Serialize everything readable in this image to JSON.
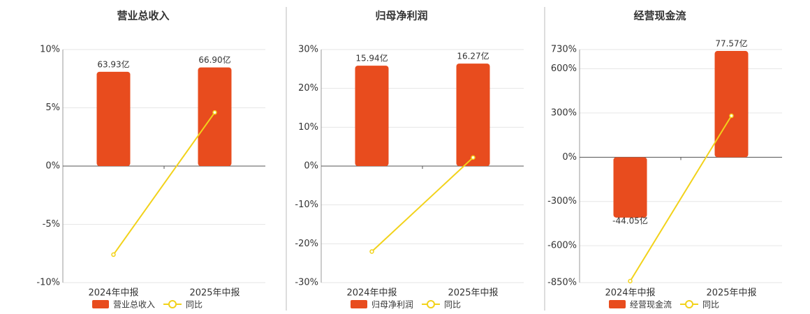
{
  "chart_data": [
    {
      "type": "bar",
      "title": "营业总收入",
      "categories": [
        "2024年中报",
        "2025年中报"
      ],
      "series": [
        {
          "name": "营业总收入",
          "type": "bar",
          "axis": "y2",
          "color": "#e84c1e",
          "values": [
            63.93,
            66.9
          ],
          "value_labels": [
            "63.93亿",
            "66.90亿"
          ]
        },
        {
          "name": "同比",
          "type": "line",
          "color": "#f2d21a",
          "values": [
            -7.6,
            4.6
          ]
        }
      ],
      "ylim": [
        -10,
        10
      ],
      "yticks": [
        {
          "value": 10,
          "label": "10%"
        },
        {
          "value": 5,
          "label": "5%"
        },
        {
          "value": 0,
          "label": "0%"
        },
        {
          "value": -5,
          "label": "-5%"
        },
        {
          "value": -10,
          "label": "-10%"
        }
      ],
      "y2lim": [
        -79,
        79
      ],
      "grid": true
    },
    {
      "type": "bar",
      "title": "归母净利润",
      "categories": [
        "2024年中报",
        "2025年中报"
      ],
      "series": [
        {
          "name": "归母净利润",
          "type": "bar",
          "axis": "y2",
          "color": "#e84c1e",
          "values": [
            15.94,
            16.27
          ],
          "value_labels": [
            "15.94亿",
            "16.27亿"
          ]
        },
        {
          "name": "同比",
          "type": "line",
          "color": "#f2d21a",
          "values": [
            -22.0,
            2.2
          ]
        }
      ],
      "ylim": [
        -30,
        30
      ],
      "yticks": [
        {
          "value": 30,
          "label": "30%"
        },
        {
          "value": 20,
          "label": "20%"
        },
        {
          "value": 10,
          "label": "10%"
        },
        {
          "value": 0,
          "label": "0%"
        },
        {
          "value": -10,
          "label": "-10%"
        },
        {
          "value": -20,
          "label": "-20%"
        },
        {
          "value": -30,
          "label": "-30%"
        }
      ],
      "y2lim": [
        -18.5,
        18.5
      ],
      "grid": true
    },
    {
      "type": "bar",
      "title": "经营现金流",
      "categories": [
        "2024年中报",
        "2025年中报"
      ],
      "series": [
        {
          "name": "经营现金流",
          "type": "bar",
          "axis": "y2",
          "color": "#e84c1e",
          "values": [
            -44.05,
            77.57
          ],
          "value_labels": [
            "-44.05亿",
            "77.57亿"
          ]
        },
        {
          "name": "同比",
          "type": "line",
          "color": "#f2d21a",
          "values": [
            -840,
            281
          ]
        }
      ],
      "ylim": [
        -850,
        730
      ],
      "yticks": [
        {
          "value": 730,
          "label": "730%"
        },
        {
          "value": 600,
          "label": "600%"
        },
        {
          "value": 300,
          "label": "300%"
        },
        {
          "value": 0,
          "label": "0%"
        },
        {
          "value": -300,
          "label": "-300%"
        },
        {
          "value": -600,
          "label": "-600%"
        },
        {
          "value": -850,
          "label": "-850%"
        }
      ],
      "y2lim": [
        -91.5,
        78.6
      ],
      "grid": true
    }
  ]
}
